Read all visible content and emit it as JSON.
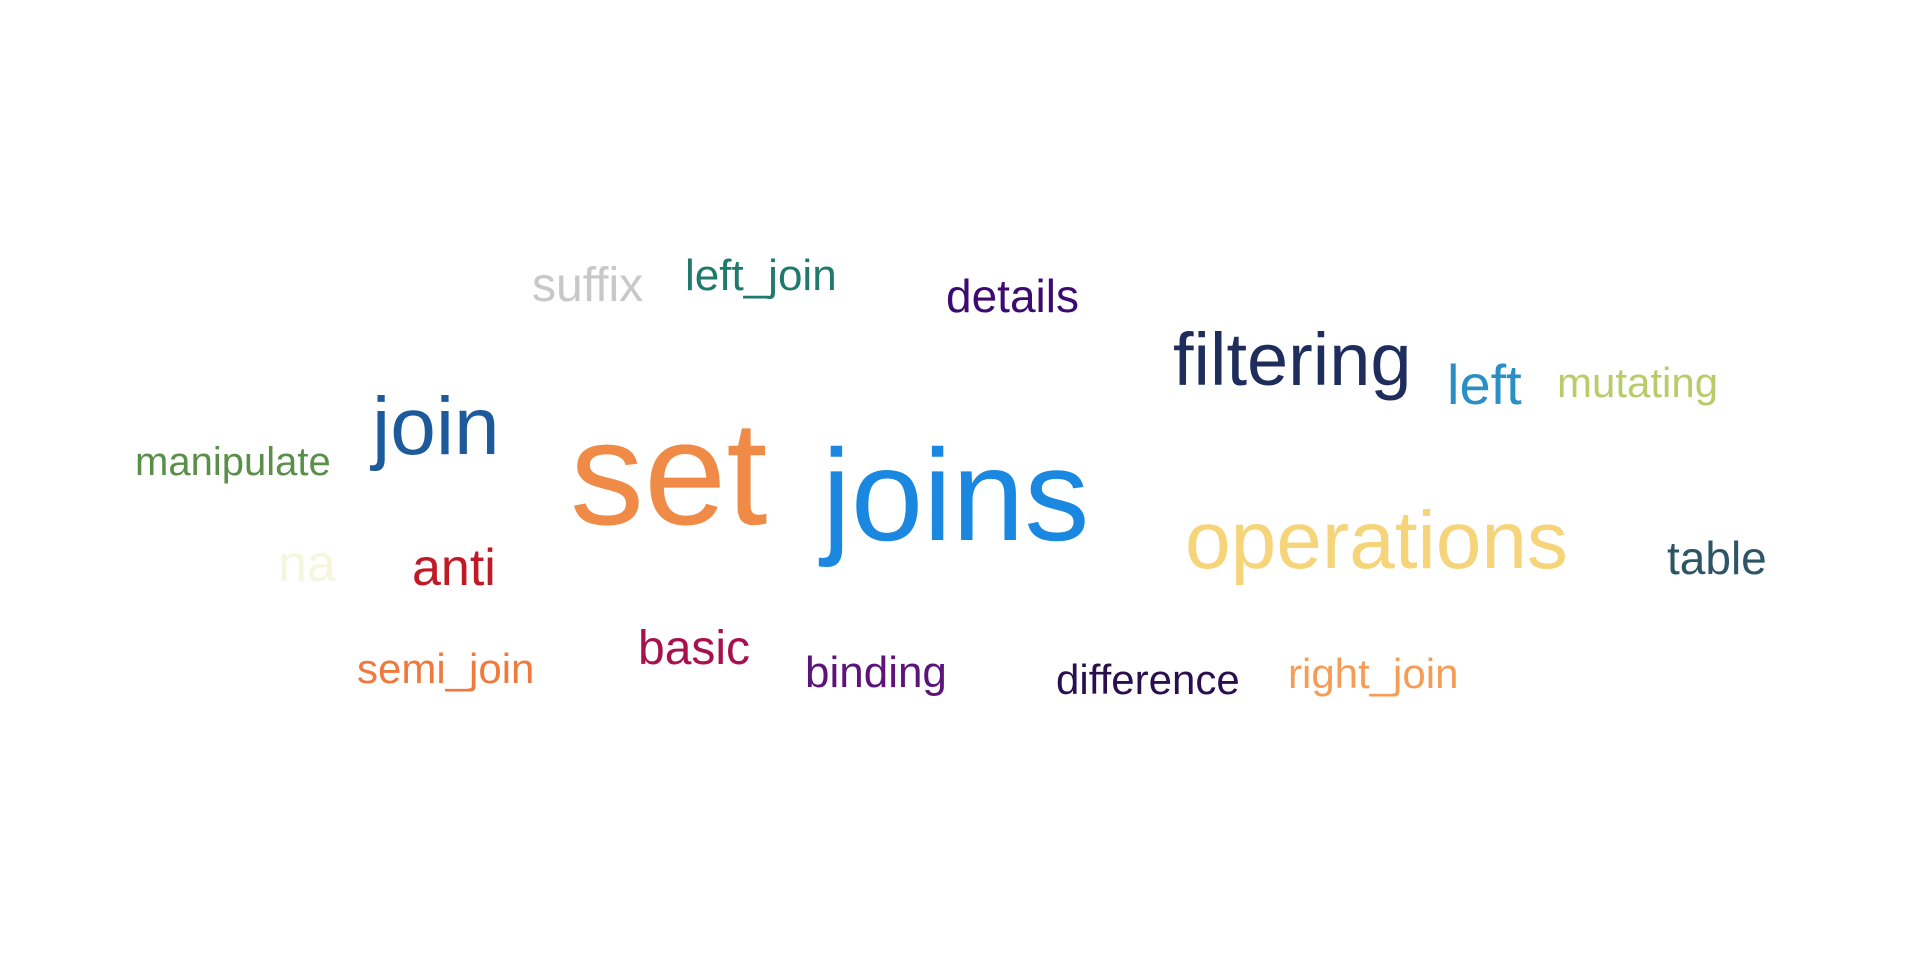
{
  "words": [
    {
      "id": "suffix",
      "text": "suffix",
      "color": "#c8c8c8"
    },
    {
      "id": "left_join",
      "text": "left_join",
      "color": "#1f7a6c"
    },
    {
      "id": "details",
      "text": "details",
      "color": "#3d0a70"
    },
    {
      "id": "filtering",
      "text": "filtering",
      "color": "#1f2d5c"
    },
    {
      "id": "left",
      "text": "left",
      "color": "#2a8fc4"
    },
    {
      "id": "mutating",
      "text": "mutating",
      "color": "#b9cc6a"
    },
    {
      "id": "join",
      "text": "join",
      "color": "#1c5a9c"
    },
    {
      "id": "manipulate",
      "text": "manipulate",
      "color": "#5a8f4a"
    },
    {
      "id": "set",
      "text": "set",
      "color": "#ef8a47"
    },
    {
      "id": "joins",
      "text": "joins",
      "color": "#1a88e0"
    },
    {
      "id": "operations",
      "text": "operations",
      "color": "#f6d57a"
    },
    {
      "id": "table",
      "text": "table",
      "color": "#2e5565"
    },
    {
      "id": "na",
      "text": "na",
      "color": "#f4f7dc"
    },
    {
      "id": "anti",
      "text": "anti",
      "color": "#c01a26"
    },
    {
      "id": "semi_join",
      "text": "semi_join",
      "color": "#f07a3c"
    },
    {
      "id": "basic",
      "text": "basic",
      "color": "#a8104e"
    },
    {
      "id": "binding",
      "text": "binding",
      "color": "#5c137a"
    },
    {
      "id": "difference",
      "text": "difference",
      "color": "#2a0f4f"
    },
    {
      "id": "right_join",
      "text": "right_join",
      "color": "#f59d56"
    }
  ]
}
